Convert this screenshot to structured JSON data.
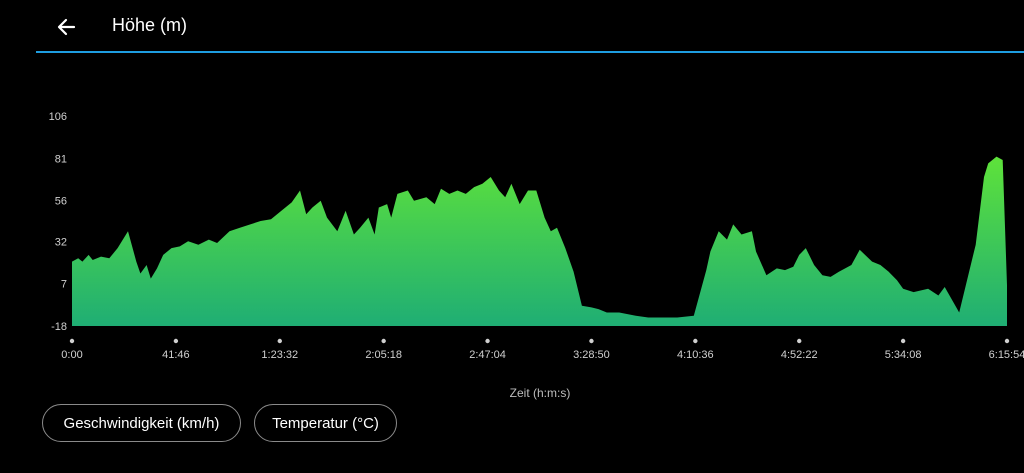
{
  "header": {
    "title": "Höhe (m)",
    "back_icon": "arrow-left-icon"
  },
  "colors": {
    "accent": "#1e9de0",
    "fill_top": "#5ee23a",
    "fill_bottom": "#1fae74"
  },
  "chart_data": {
    "type": "area",
    "title": "Höhe (m)",
    "xlabel": "Zeit (h:m:s)",
    "ylabel": "",
    "x_tick_labels": [
      "0:00",
      "41:46",
      "1:23:32",
      "2:05:18",
      "2:47:04",
      "3:28:50",
      "4:10:36",
      "4:52:22",
      "5:34:08",
      "6:15:54"
    ],
    "x_ticks_seconds": [
      0,
      2506,
      5012,
      7518,
      10024,
      12530,
      15036,
      17542,
      20048,
      22554
    ],
    "y_ticks": [
      -18,
      7,
      32,
      56,
      81,
      106
    ],
    "ylim": [
      -18,
      106
    ],
    "grid": false,
    "series": [
      {
        "x_seconds": [
          0,
          150,
          250,
          400,
          500,
          700,
          900,
          1100,
          1350,
          1550,
          1650,
          1800,
          1900,
          2050,
          2200,
          2400,
          2600,
          2800,
          3050,
          3300,
          3500,
          3800,
          4050,
          4300,
          4550,
          4800,
          5050,
          5300,
          5500,
          5650,
          5800,
          6000,
          6150,
          6400,
          6500,
          6600,
          6800,
          6950,
          7150,
          7300,
          7400,
          7600,
          7700,
          7850,
          8100,
          8250,
          8550,
          8750,
          8900,
          9100,
          9300,
          9500,
          9700,
          9900,
          10100,
          10300,
          10450,
          10600,
          10800,
          11000,
          11200,
          11400,
          11550,
          11700,
          11900,
          12100,
          12300,
          12530,
          12700,
          12900,
          13200,
          13600,
          13900,
          14200,
          14600,
          15000,
          15300,
          15400,
          15600,
          15800,
          15950,
          16150,
          16400,
          16500,
          16750,
          17000,
          17200,
          17400,
          17542,
          17700,
          17900,
          18100,
          18300,
          18500,
          18800,
          19000,
          19300,
          19500,
          19700,
          19900,
          20048,
          20300,
          20650,
          20900,
          21050,
          21400,
          21800,
          22000,
          22100,
          22300,
          22450,
          22554
        ],
        "y": [
          20,
          22,
          20,
          24,
          21,
          23,
          22,
          28,
          38,
          20,
          13,
          18,
          10,
          16,
          24,
          28,
          29,
          32,
          30,
          33,
          31,
          38,
          40,
          42,
          44,
          45,
          50,
          55,
          62,
          48,
          52,
          56,
          46,
          38,
          44,
          50,
          36,
          40,
          46,
          36,
          52,
          54,
          46,
          60,
          62,
          56,
          58,
          54,
          63,
          60,
          62,
          60,
          64,
          66,
          70,
          62,
          58,
          66,
          54,
          62,
          62,
          46,
          38,
          40,
          28,
          14,
          -6,
          -7,
          -8,
          -10,
          -10,
          -12,
          -13,
          -13,
          -13,
          -12,
          15,
          26,
          38,
          33,
          42,
          36,
          38,
          26,
          12,
          16,
          15,
          17,
          24,
          28,
          18,
          12,
          11,
          14,
          18,
          27,
          20,
          18,
          14,
          9,
          4,
          2,
          4,
          0,
          5,
          -10,
          30,
          70,
          78,
          82,
          80,
          6
        ]
      }
    ]
  },
  "buttons": [
    {
      "label": "Geschwindigkeit (km/h)"
    },
    {
      "label": "Temperatur (°C)"
    }
  ]
}
